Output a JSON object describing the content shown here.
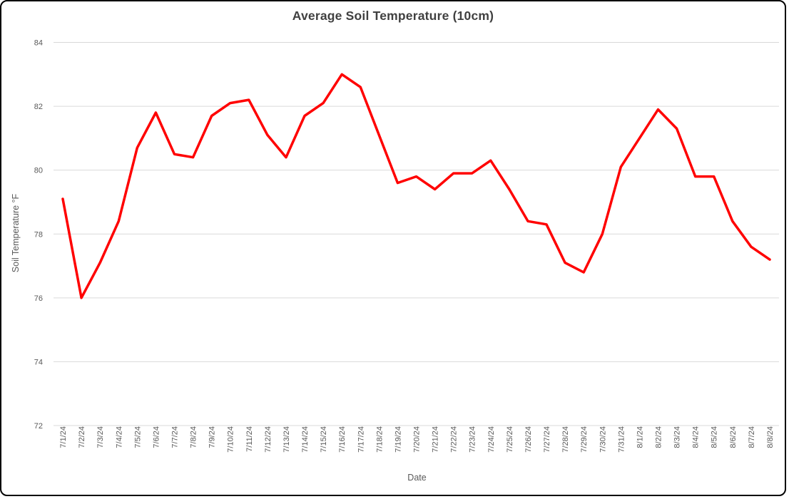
{
  "window": {
    "background_color": "#ffffff",
    "border_color": "#000000"
  },
  "chart_data": {
    "type": "line",
    "title": "Average Soil Temperature (10cm)",
    "xlabel": "Date",
    "ylabel": "Soil Temperature °F",
    "ylim": [
      72,
      84
    ],
    "yticks": [
      84,
      82,
      80,
      78,
      76,
      74,
      72
    ],
    "grid": "horizontal-only",
    "legend": "none",
    "gridline_color": "#d9d9d9",
    "title_color": "#404040",
    "axis_text_color": "#595959",
    "x": [
      "7/1/24",
      "7/2/24",
      "7/3/24",
      "7/4/24",
      "7/5/24",
      "7/6/24",
      "7/7/24",
      "7/8/24",
      "7/9/24",
      "7/10/24",
      "7/11/24",
      "7/12/24",
      "7/13/24",
      "7/14/24",
      "7/15/24",
      "7/16/24",
      "7/17/24",
      "7/18/24",
      "7/19/24",
      "7/20/24",
      "7/21/24",
      "7/22/24",
      "7/23/24",
      "7/24/24",
      "7/25/24",
      "7/26/24",
      "7/27/24",
      "7/28/24",
      "7/29/24",
      "7/30/24",
      "7/31/24",
      "8/1/24",
      "8/2/24",
      "8/3/24",
      "8/4/24",
      "8/5/24",
      "8/6/24",
      "8/7/24",
      "8/8/24"
    ],
    "series": [
      {
        "name": "Average Soil Temperature (10cm)",
        "color": "#ff0000",
        "line_width": 3.5,
        "values": [
          79.1,
          76.0,
          77.1,
          78.4,
          80.7,
          81.8,
          80.5,
          80.4,
          81.7,
          82.1,
          82.2,
          81.1,
          80.4,
          81.7,
          82.1,
          83.0,
          82.6,
          81.1,
          79.6,
          79.8,
          79.4,
          79.9,
          79.9,
          80.3,
          79.4,
          78.4,
          78.3,
          77.1,
          76.8,
          78.0,
          80.1,
          81.0,
          81.9,
          81.3,
          79.8,
          79.8,
          78.4,
          77.6,
          77.2
        ]
      }
    ]
  }
}
